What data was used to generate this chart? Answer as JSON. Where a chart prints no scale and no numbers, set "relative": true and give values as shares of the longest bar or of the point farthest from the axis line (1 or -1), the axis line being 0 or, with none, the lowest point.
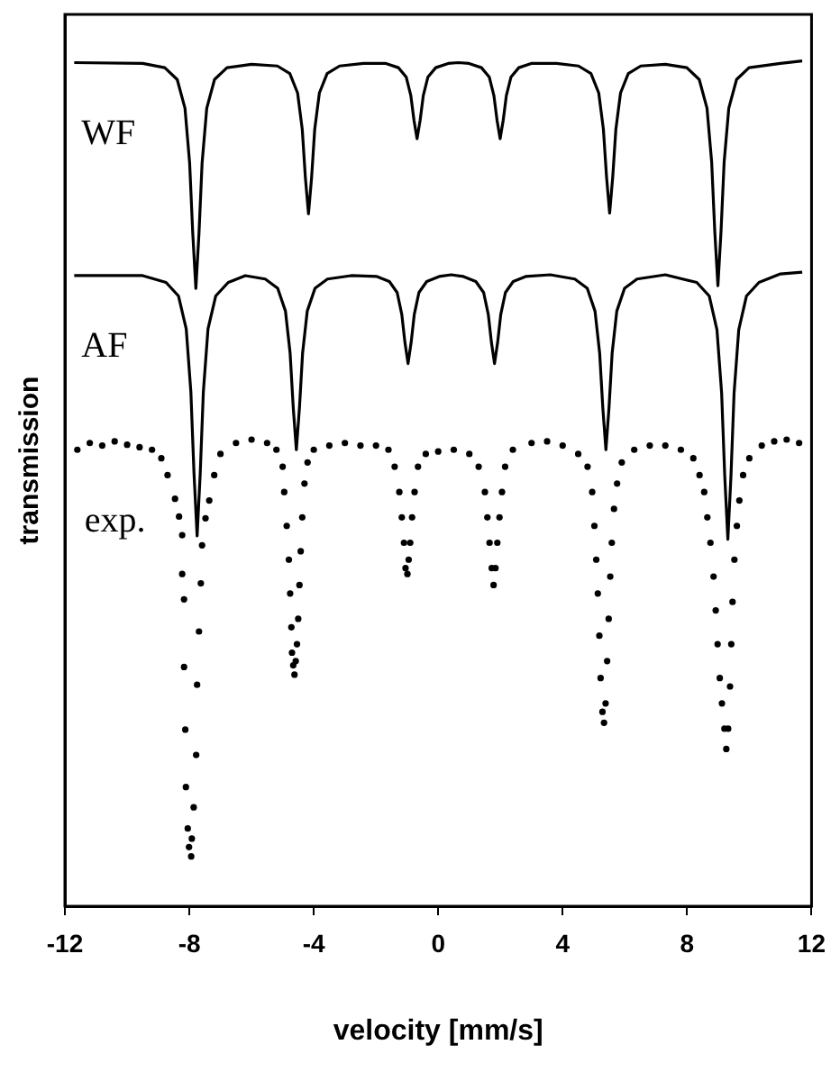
{
  "chart_data": {
    "type": "line",
    "xlabel": "velocity [mm/s]",
    "ylabel": "transmission",
    "relative": true,
    "xlim": [
      -12,
      12
    ],
    "xticks": [
      -12,
      -8,
      -4,
      0,
      4,
      8,
      12
    ],
    "grid": false,
    "legend": false,
    "series": [
      {
        "name": "WF",
        "color": "#000000",
        "x": [
          -11.7,
          -9.5,
          -8.79,
          -8.39,
          -8.14,
          -7.99,
          -7.89,
          -7.79,
          -7.69,
          -7.59,
          -7.44,
          -7.19,
          -6.79,
          -6.0,
          -5.17,
          -4.77,
          -4.52,
          -4.37,
          -4.27,
          -4.17,
          -4.07,
          -3.97,
          -3.82,
          -3.57,
          -3.17,
          -2.4,
          -1.68,
          -1.28,
          -1.03,
          -0.88,
          -0.78,
          -0.68,
          -0.58,
          -0.48,
          -0.33,
          -0.08,
          0.32,
          0.65,
          0.99,
          1.39,
          1.64,
          1.79,
          1.89,
          1.99,
          2.09,
          2.19,
          2.34,
          2.59,
          2.99,
          3.8,
          4.51,
          4.91,
          5.16,
          5.31,
          5.41,
          5.51,
          5.61,
          5.71,
          5.86,
          6.11,
          6.51,
          7.3,
          7.99,
          8.39,
          8.64,
          8.79,
          8.89,
          8.99,
          9.09,
          9.19,
          9.34,
          9.59,
          9.99,
          11.0,
          11.7
        ],
        "values": [
          0.998,
          0.997,
          0.992,
          0.978,
          0.944,
          0.879,
          0.796,
          0.731,
          0.796,
          0.879,
          0.944,
          0.978,
          0.992,
          0.996,
          0.994,
          0.985,
          0.962,
          0.919,
          0.862,
          0.819,
          0.862,
          0.919,
          0.962,
          0.985,
          0.994,
          0.997,
          0.997,
          0.992,
          0.981,
          0.959,
          0.93,
          0.908,
          0.93,
          0.959,
          0.981,
          0.992,
          0.997,
          0.998,
          0.997,
          0.992,
          0.981,
          0.959,
          0.93,
          0.908,
          0.93,
          0.959,
          0.981,
          0.992,
          0.997,
          0.997,
          0.994,
          0.985,
          0.962,
          0.919,
          0.863,
          0.82,
          0.863,
          0.919,
          0.962,
          0.985,
          0.994,
          0.996,
          0.992,
          0.978,
          0.944,
          0.88,
          0.798,
          0.734,
          0.798,
          0.88,
          0.944,
          0.978,
          0.992,
          0.997,
          1.0
        ]
      },
      {
        "name": "AF",
        "color": "#000000",
        "x": [
          -11.7,
          -9.5,
          -8.75,
          -8.35,
          -8.1,
          -7.95,
          -7.85,
          -7.75,
          -7.65,
          -7.55,
          -7.4,
          -7.15,
          -6.75,
          -6.2,
          -5.56,
          -5.16,
          -4.91,
          -4.76,
          -4.66,
          -4.56,
          -4.46,
          -4.36,
          -4.21,
          -3.96,
          -3.56,
          -2.8,
          -1.97,
          -1.57,
          -1.32,
          -1.17,
          -1.07,
          -0.97,
          -0.87,
          -0.77,
          -0.62,
          -0.37,
          0.03,
          0.42,
          0.81,
          1.21,
          1.46,
          1.61,
          1.71,
          1.81,
          1.91,
          2.01,
          2.16,
          2.41,
          2.81,
          3.6,
          4.39,
          4.79,
          5.04,
          5.19,
          5.29,
          5.39,
          5.49,
          5.59,
          5.74,
          5.99,
          6.39,
          7.3,
          8.31,
          8.71,
          8.96,
          9.11,
          9.21,
          9.31,
          9.41,
          9.51,
          9.66,
          9.91,
          10.31,
          11.0,
          11.7
        ],
        "values": [
          0.746,
          0.746,
          0.738,
          0.722,
          0.683,
          0.608,
          0.512,
          0.438,
          0.512,
          0.608,
          0.683,
          0.722,
          0.738,
          0.746,
          0.742,
          0.731,
          0.704,
          0.654,
          0.59,
          0.54,
          0.59,
          0.654,
          0.704,
          0.731,
          0.742,
          0.746,
          0.745,
          0.739,
          0.726,
          0.7,
          0.667,
          0.642,
          0.667,
          0.7,
          0.726,
          0.739,
          0.745,
          0.747,
          0.745,
          0.739,
          0.726,
          0.7,
          0.667,
          0.642,
          0.667,
          0.7,
          0.726,
          0.739,
          0.745,
          0.747,
          0.742,
          0.731,
          0.704,
          0.654,
          0.59,
          0.54,
          0.59,
          0.654,
          0.704,
          0.731,
          0.742,
          0.747,
          0.738,
          0.722,
          0.682,
          0.607,
          0.509,
          0.434,
          0.509,
          0.607,
          0.682,
          0.722,
          0.738,
          0.748,
          0.75
        ]
      },
      {
        "name": "exp.",
        "type": "scatter",
        "color": "#000000",
        "x": [
          -11.6,
          -11.2,
          -10.8,
          -10.4,
          -10.0,
          -9.6,
          -9.2,
          -8.9,
          -8.7,
          -8.46,
          -8.33,
          -8.23,
          -8.23,
          -8.17,
          -8.17,
          -8.13,
          -8.11,
          -8.05,
          -8.01,
          -7.94,
          -7.92,
          -7.86,
          -7.78,
          -7.75,
          -7.69,
          -7.63,
          -7.59,
          -7.48,
          -7.36,
          -7.2,
          -7.0,
          -6.5,
          -6.0,
          -5.5,
          -5.2,
          -5.0,
          -4.95,
          -4.87,
          -4.8,
          -4.76,
          -4.72,
          -4.7,
          -4.66,
          -4.62,
          -4.58,
          -4.54,
          -4.5,
          -4.46,
          -4.42,
          -4.37,
          -4.3,
          -4.2,
          -4.0,
          -3.5,
          -3.0,
          -2.5,
          -2.0,
          -1.6,
          -1.4,
          -1.25,
          -1.17,
          -1.1,
          -1.05,
          -0.99,
          -0.95,
          -0.9,
          -0.84,
          -0.76,
          -0.65,
          -0.4,
          0.0,
          0.5,
          1.0,
          1.3,
          1.5,
          1.58,
          1.65,
          1.72,
          1.78,
          1.84,
          1.9,
          1.97,
          2.05,
          2.15,
          2.4,
          3.0,
          3.5,
          4.0,
          4.5,
          4.8,
          4.95,
          5.02,
          5.08,
          5.13,
          5.18,
          5.22,
          5.28,
          5.33,
          5.38,
          5.43,
          5.48,
          5.53,
          5.58,
          5.65,
          5.75,
          5.9,
          6.3,
          6.8,
          7.3,
          7.8,
          8.2,
          8.4,
          8.55,
          8.65,
          8.75,
          8.85,
          8.92,
          8.98,
          9.05,
          9.12,
          9.2,
          9.26,
          9.32,
          9.38,
          9.42,
          9.46,
          9.52,
          9.6,
          9.68,
          9.8,
          10.0,
          10.4,
          10.8,
          11.2,
          11.6
        ],
        "values": [
          0.54,
          0.548,
          0.545,
          0.55,
          0.546,
          0.543,
          0.54,
          0.53,
          0.51,
          0.482,
          0.461,
          0.439,
          0.393,
          0.363,
          0.283,
          0.209,
          0.141,
          0.092,
          0.07,
          0.059,
          0.08,
          0.117,
          0.179,
          0.262,
          0.325,
          0.382,
          0.427,
          0.459,
          0.48,
          0.51,
          0.535,
          0.548,
          0.552,
          0.548,
          0.54,
          0.52,
          0.49,
          0.45,
          0.41,
          0.37,
          0.33,
          0.3,
          0.285,
          0.274,
          0.29,
          0.31,
          0.34,
          0.38,
          0.42,
          0.46,
          0.5,
          0.525,
          0.54,
          0.545,
          0.548,
          0.545,
          0.545,
          0.54,
          0.52,
          0.49,
          0.46,
          0.43,
          0.4,
          0.393,
          0.41,
          0.43,
          0.46,
          0.49,
          0.52,
          0.535,
          0.538,
          0.54,
          0.535,
          0.52,
          0.49,
          0.46,
          0.43,
          0.4,
          0.38,
          0.4,
          0.43,
          0.46,
          0.49,
          0.52,
          0.54,
          0.548,
          0.55,
          0.545,
          0.535,
          0.52,
          0.49,
          0.45,
          0.41,
          0.37,
          0.32,
          0.27,
          0.23,
          0.217,
          0.24,
          0.29,
          0.34,
          0.39,
          0.43,
          0.47,
          0.5,
          0.525,
          0.54,
          0.545,
          0.545,
          0.54,
          0.53,
          0.51,
          0.49,
          0.46,
          0.43,
          0.39,
          0.35,
          0.31,
          0.27,
          0.24,
          0.21,
          0.186,
          0.21,
          0.26,
          0.31,
          0.36,
          0.41,
          0.45,
          0.48,
          0.51,
          0.53,
          0.545,
          0.55,
          0.552,
          0.548
        ]
      }
    ]
  }
}
